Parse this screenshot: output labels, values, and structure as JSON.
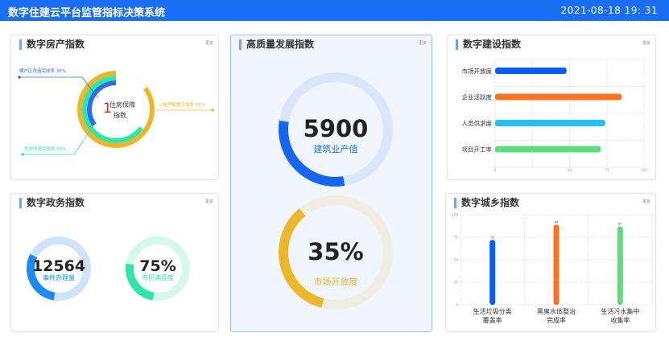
{
  "header": {
    "title": "数字住建云平台监管指标决策系统",
    "datetime": "2021-08-18   19: 31"
  },
  "more_label": "更多",
  "housing": {
    "title": "数字房产指数",
    "center_number": "1",
    "center_text1": "住房保障",
    "center_text2": "指数",
    "items": [
      {
        "label": "棚户区改造完成率 35%",
        "value": 35,
        "color": "#2b6ff0"
      },
      {
        "label": "公租房配置完成率 85%",
        "value": 85,
        "color": "#f0b429"
      },
      {
        "label": "危房改造完成率 65%",
        "value": 65,
        "color": "#2ee6a8"
      }
    ]
  },
  "gov": {
    "title": "数字政务指数",
    "rings": [
      {
        "value": "12564",
        "label": "事件办理量",
        "fraction": 0.3,
        "color": "#1b8cf5",
        "track": "#cfe3fb"
      },
      {
        "value": "75%",
        "label": "市民满意度",
        "fraction": 0.25,
        "color": "#2ee6a8",
        "track": "#d4f8ea"
      }
    ]
  },
  "quality": {
    "title": "高质量发展指数",
    "rings": [
      {
        "value": "5900",
        "label": "建筑业产值",
        "fraction": 0.3,
        "color": "#1565f0",
        "track": "#d9e6fb",
        "label_color": "#1b74f0"
      },
      {
        "value": "35%",
        "label": "市场开放度",
        "fraction": 0.35,
        "color": "#ecb72b",
        "track": "#efeee0",
        "label_color": "#e8b42a"
      }
    ]
  },
  "construction": {
    "title": "数字建设指数",
    "chart_data": {
      "type": "bar",
      "orientation": "horizontal",
      "categories": [
        "市场开放度",
        "企业活跃度",
        "人员供求度",
        "项目开工率"
      ],
      "values": [
        48,
        85,
        74,
        71
      ],
      "colors": [
        "#0b5cf5",
        "#fb7520",
        "#22c0fa",
        "#5fdc7e"
      ],
      "xlim": [
        0,
        100
      ],
      "xticks": [
        "0",
        "50",
        "75",
        "100"
      ],
      "grid": true
    }
  },
  "urban": {
    "title": "数字城乡指数",
    "chart_data": {
      "type": "bar",
      "categories": [
        "生活垃圾分类\n覆盖率",
        "黑臭水体整治\n完成率",
        "生活污水集中\n收集率"
      ],
      "values": [
        72,
        89,
        87
      ],
      "colors": [
        "#0b5cf5",
        "#fb7520",
        "#5fdc7e"
      ],
      "ylim": [
        0,
        100
      ],
      "yticks": [
        "0",
        "25",
        "50",
        "75",
        "100"
      ],
      "grid": true
    }
  }
}
